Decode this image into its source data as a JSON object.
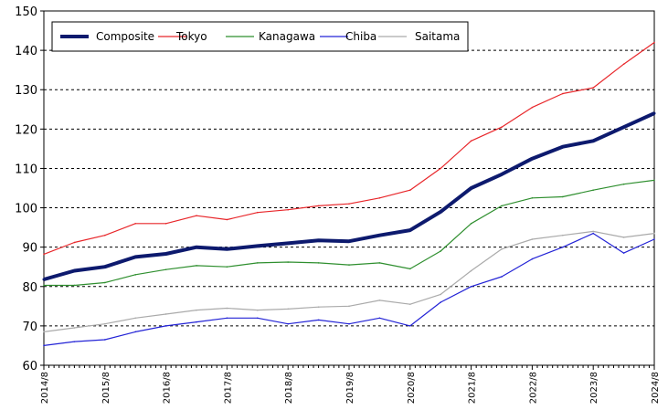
{
  "chart_data": {
    "type": "line",
    "title": "",
    "xlabel": "",
    "ylabel": "",
    "ylim": [
      60,
      150
    ],
    "y_ticks": [
      60,
      70,
      80,
      90,
      100,
      110,
      120,
      130,
      140,
      150
    ],
    "x_tick_labels": [
      "2014/8",
      "2015/8",
      "2016/8",
      "2017/8",
      "2018/8",
      "2019/8",
      "2020/8",
      "2021/8",
      "2022/8",
      "2023/8",
      "2024/8"
    ],
    "grid": "horizontal dashed",
    "legend_position": "top-left",
    "series": [
      {
        "name": "Composite",
        "color": "#0d1a6e",
        "points": [
          [
            "2014/8",
            81.8
          ],
          [
            "2015/2",
            84.0
          ],
          [
            "2015/8",
            85.0
          ],
          [
            "2016/2",
            87.5
          ],
          [
            "2016/8",
            88.3
          ],
          [
            "2017/2",
            90.0
          ],
          [
            "2017/8",
            89.5
          ],
          [
            "2018/2",
            90.3
          ],
          [
            "2018/8",
            91.0
          ],
          [
            "2019/2",
            91.7
          ],
          [
            "2019/8",
            91.5
          ],
          [
            "2020/2",
            93.0
          ],
          [
            "2020/8",
            94.3
          ],
          [
            "2021/2",
            99.0
          ],
          [
            "2021/8",
            105.0
          ],
          [
            "2022/2",
            108.5
          ],
          [
            "2022/8",
            112.5
          ],
          [
            "2023/2",
            115.5
          ],
          [
            "2023/8",
            117.0
          ],
          [
            "2024/2",
            120.5
          ],
          [
            "2024/8",
            124.0
          ]
        ]
      },
      {
        "name": "Tokyo",
        "color": "#e8262a",
        "points": [
          [
            "2014/8",
            88.2
          ],
          [
            "2015/2",
            91.2
          ],
          [
            "2015/8",
            93.0
          ],
          [
            "2016/2",
            96.0
          ],
          [
            "2016/8",
            96.0
          ],
          [
            "2017/2",
            98.0
          ],
          [
            "2017/8",
            97.0
          ],
          [
            "2018/2",
            98.8
          ],
          [
            "2018/8",
            99.5
          ],
          [
            "2019/2",
            100.5
          ],
          [
            "2019/8",
            101.0
          ],
          [
            "2020/2",
            102.5
          ],
          [
            "2020/8",
            104.5
          ],
          [
            "2021/2",
            110.0
          ],
          [
            "2021/8",
            117.0
          ],
          [
            "2022/2",
            120.5
          ],
          [
            "2022/8",
            125.5
          ],
          [
            "2023/2",
            129.0
          ],
          [
            "2023/8",
            130.5
          ],
          [
            "2024/2",
            136.5
          ],
          [
            "2024/8",
            142.0
          ]
        ]
      },
      {
        "name": "Kanagawa",
        "color": "#2f8f2f",
        "points": [
          [
            "2014/8",
            80.3
          ],
          [
            "2015/2",
            80.3
          ],
          [
            "2015/8",
            81.0
          ],
          [
            "2016/2",
            83.0
          ],
          [
            "2016/8",
            84.3
          ],
          [
            "2017/2",
            85.3
          ],
          [
            "2017/8",
            85.0
          ],
          [
            "2018/2",
            86.0
          ],
          [
            "2018/8",
            86.2
          ],
          [
            "2019/2",
            86.0
          ],
          [
            "2019/8",
            85.5
          ],
          [
            "2020/2",
            86.0
          ],
          [
            "2020/8",
            84.5
          ],
          [
            "2021/2",
            89.0
          ],
          [
            "2021/8",
            96.0
          ],
          [
            "2022/2",
            100.5
          ],
          [
            "2022/8",
            102.5
          ],
          [
            "2023/2",
            102.8
          ],
          [
            "2023/8",
            104.5
          ],
          [
            "2024/2",
            106.0
          ],
          [
            "2024/8",
            107.0
          ]
        ]
      },
      {
        "name": "Chiba",
        "color": "#2323d6",
        "points": [
          [
            "2014/8",
            65.0
          ],
          [
            "2015/2",
            66.0
          ],
          [
            "2015/8",
            66.5
          ],
          [
            "2016/2",
            68.5
          ],
          [
            "2016/8",
            70.0
          ],
          [
            "2017/2",
            71.0
          ],
          [
            "2017/8",
            72.0
          ],
          [
            "2018/2",
            72.0
          ],
          [
            "2018/8",
            70.5
          ],
          [
            "2019/2",
            71.5
          ],
          [
            "2019/8",
            70.5
          ],
          [
            "2020/2",
            72.0
          ],
          [
            "2020/8",
            70.0
          ],
          [
            "2021/2",
            76.0
          ],
          [
            "2021/8",
            80.0
          ],
          [
            "2022/2",
            82.5
          ],
          [
            "2022/8",
            87.0
          ],
          [
            "2023/2",
            90.0
          ],
          [
            "2023/8",
            93.5
          ],
          [
            "2024/2",
            88.5
          ],
          [
            "2024/8",
            92.0
          ]
        ]
      },
      {
        "name": "Saitama",
        "color": "#aaaaaa",
        "points": [
          [
            "2014/8",
            68.5
          ],
          [
            "2015/2",
            69.5
          ],
          [
            "2015/8",
            70.5
          ],
          [
            "2016/2",
            72.0
          ],
          [
            "2016/8",
            73.0
          ],
          [
            "2017/2",
            74.0
          ],
          [
            "2017/8",
            74.5
          ],
          [
            "2018/2",
            74.0
          ],
          [
            "2018/8",
            74.3
          ],
          [
            "2019/2",
            74.8
          ],
          [
            "2019/8",
            75.0
          ],
          [
            "2020/2",
            76.5
          ],
          [
            "2020/8",
            75.5
          ],
          [
            "2021/2",
            78.0
          ],
          [
            "2021/8",
            84.0
          ],
          [
            "2022/2",
            89.5
          ],
          [
            "2022/8",
            92.0
          ],
          [
            "2023/2",
            93.0
          ],
          [
            "2023/8",
            94.0
          ],
          [
            "2024/2",
            92.5
          ],
          [
            "2024/8",
            93.5
          ]
        ]
      }
    ]
  }
}
